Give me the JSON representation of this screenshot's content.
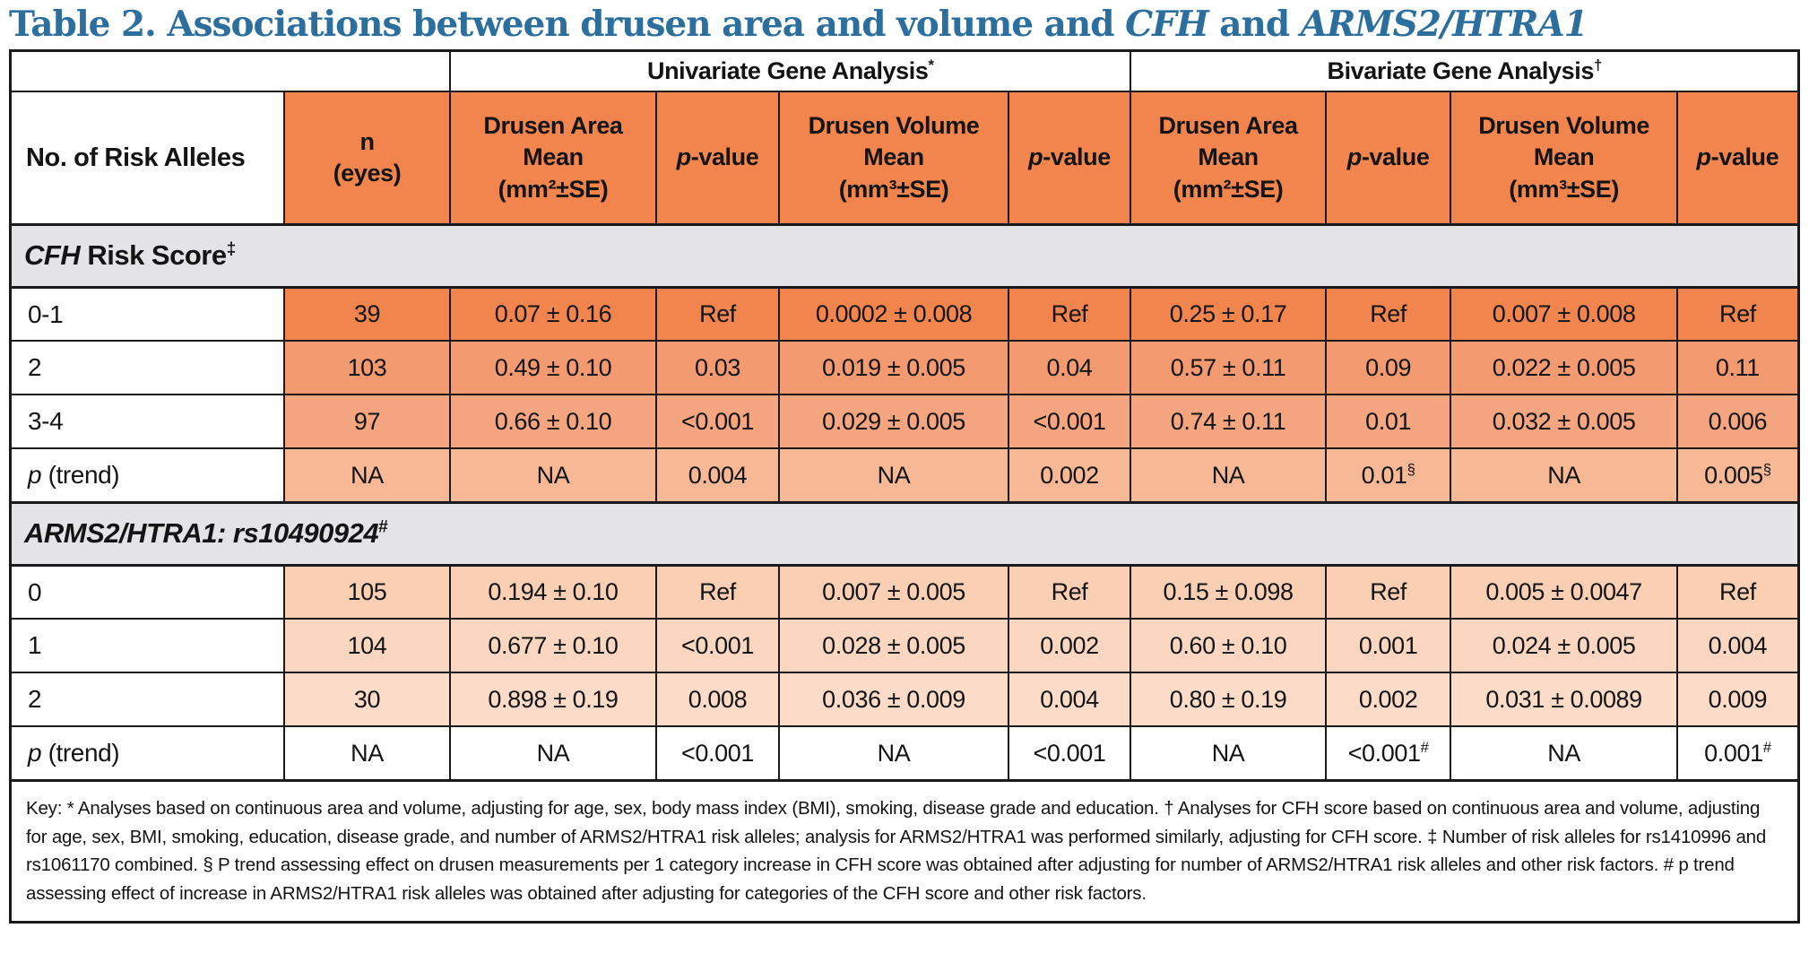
{
  "title": {
    "color": "#2C6F9E",
    "parts": [
      {
        "text": "Table 2. Associations between drusen area and volume and ",
        "italic": false
      },
      {
        "text": "CFH",
        "italic": true
      },
      {
        "text": " and ",
        "italic": false
      },
      {
        "text": "ARMS2/HTRA1",
        "italic": true
      }
    ]
  },
  "table": {
    "border_color": "#1a1a1a",
    "header_orange": "#F2854E",
    "section_bg": "#E4E4E6",
    "col_widths_percent": [
      15.3,
      9.3,
      11.5,
      6.9,
      12.8,
      6.85,
      10.9,
      7.0,
      12.65,
      6.8
    ],
    "group_headers": [
      {
        "label": "Univariate Gene Analysis",
        "sup": "*"
      },
      {
        "label": "Bivariate Gene Analysis",
        "sup": "†"
      }
    ],
    "columns": [
      {
        "pre_italic": "",
        "label": "No. of Risk Alleles"
      },
      {
        "pre_italic": "",
        "label": "n\n(eyes)"
      },
      {
        "pre_italic": "",
        "label": "Drusen Area\nMean\n(mm²±SE)"
      },
      {
        "pre_italic": "p",
        "label": "-value"
      },
      {
        "pre_italic": "",
        "label": "Drusen Volume\nMean\n(mm³±SE)"
      },
      {
        "pre_italic": "p",
        "label": "-value"
      },
      {
        "pre_italic": "",
        "label": "Drusen Area\nMean\n(mm²±SE)"
      },
      {
        "pre_italic": "p",
        "label": "-value"
      },
      {
        "pre_italic": "",
        "label": "Drusen Volume\nMean\n(mm³±SE)"
      },
      {
        "pre_italic": "p",
        "label": "-value"
      }
    ],
    "sections": [
      {
        "header": {
          "italic": "CFH",
          "rest": " Risk Score",
          "sup": "‡"
        },
        "rows": [
          {
            "label": {
              "italic": "",
              "text": "0-1"
            },
            "bg": "#F2854E",
            "cells": [
              "39",
              "0.07 ± 0.16",
              "Ref",
              "0.0002 ± 0.008",
              "Ref",
              "0.25 ± 0.17",
              "Ref",
              "0.007 ± 0.008",
              "Ref"
            ]
          },
          {
            "label": {
              "italic": "",
              "text": "2"
            },
            "bg": "#F49A70",
            "cells": [
              "103",
              "0.49 ± 0.10",
              "0.03",
              "0.019 ± 0.005",
              "0.04",
              "0.57 ± 0.11",
              "0.09",
              "0.022 ± 0.005",
              "0.11"
            ]
          },
          {
            "label": {
              "italic": "",
              "text": "3-4"
            },
            "bg": "#F5A57F",
            "cells": [
              "97",
              "0.66 ± 0.10",
              "<0.001",
              "0.029 ± 0.005",
              "<0.001",
              "0.74 ± 0.11",
              "0.01",
              "0.032 ± 0.005",
              "0.006"
            ]
          },
          {
            "label": {
              "italic": "p",
              "text": " (trend)"
            },
            "bg": "#F7B896",
            "cells": [
              "NA",
              "NA",
              "0.004",
              "NA",
              "0.002",
              "NA",
              "0.01^§",
              "NA",
              "0.005^§"
            ]
          }
        ]
      },
      {
        "header": {
          "italic": "ARMS2/HTRA1: rs10490924",
          "rest": "",
          "sup": "#"
        },
        "rows": [
          {
            "label": {
              "italic": "",
              "text": "0"
            },
            "bg": "#FACFB3",
            "cells": [
              "105",
              "0.194 ± 0.10",
              "Ref",
              "0.007 ± 0.005",
              "Ref",
              "0.15 ± 0.098",
              "Ref",
              "0.005 ± 0.0047",
              "Ref"
            ]
          },
          {
            "label": {
              "italic": "",
              "text": "1"
            },
            "bg": "#FBD7C1",
            "cells": [
              "104",
              "0.677 ± 0.10",
              "<0.001",
              "0.028 ± 0.005",
              "0.002",
              "0.60 ± 0.10",
              "0.001",
              "0.024 ± 0.005",
              "0.004"
            ]
          },
          {
            "label": {
              "italic": "",
              "text": "2"
            },
            "bg": "#FCDCC9",
            "cells": [
              "30",
              "0.898 ± 0.19",
              "0.008",
              "0.036 ± 0.009",
              "0.004",
              "0.80 ± 0.19",
              "0.002",
              "0.031 ± 0.0089",
              "0.009"
            ]
          },
          {
            "label": {
              "italic": "p",
              "text": " (trend)"
            },
            "bg": "#FFFFFF",
            "cells": [
              "NA",
              "NA",
              "<0.001",
              "NA",
              "<0.001",
              "NA",
              "<0.001^#",
              "NA",
              "0.001^#"
            ]
          }
        ]
      }
    ],
    "footnote": "Key: * Analyses based on continuous area and volume, adjusting for age, sex, body mass index (BMI), smoking, disease grade and education. † Analyses for CFH score based on continuous area and volume, adjusting for age, sex, BMI, smoking, education, disease grade, and number of ARMS2/HTRA1 risk alleles; analysis for ARMS2/HTRA1 was performed similarly, adjusting for CFH score. ‡ Number of risk alleles for rs1410996 and rs1061170 combined. § P trend assessing effect on drusen measurements per 1 category increase in CFH score was obtained after adjusting for number of ARMS2/HTRA1 risk alleles and other risk factors. # p trend assessing effect of increase in ARMS2/HTRA1 risk alleles was obtained after adjusting for categories of the CFH score and other risk factors."
  }
}
